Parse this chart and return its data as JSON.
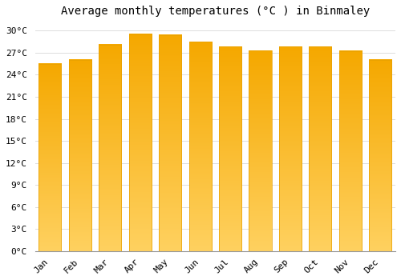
{
  "title": "Average monthly temperatures (°C ) in Binmaley",
  "months": [
    "Jan",
    "Feb",
    "Mar",
    "Apr",
    "May",
    "Jun",
    "Jul",
    "Aug",
    "Sep",
    "Oct",
    "Nov",
    "Dec"
  ],
  "values": [
    25.5,
    26.0,
    28.1,
    29.5,
    29.4,
    28.5,
    27.8,
    27.3,
    27.8,
    27.8,
    27.2,
    26.0
  ],
  "bar_color_top": "#F5A800",
  "bar_color_bottom": "#FFD060",
  "background_color": "#FFFFFF",
  "grid_color": "#DDDDDD",
  "ylim": [
    0,
    31
  ],
  "yticks": [
    0,
    3,
    6,
    9,
    12,
    15,
    18,
    21,
    24,
    27,
    30
  ],
  "title_fontsize": 10,
  "tick_fontsize": 8
}
